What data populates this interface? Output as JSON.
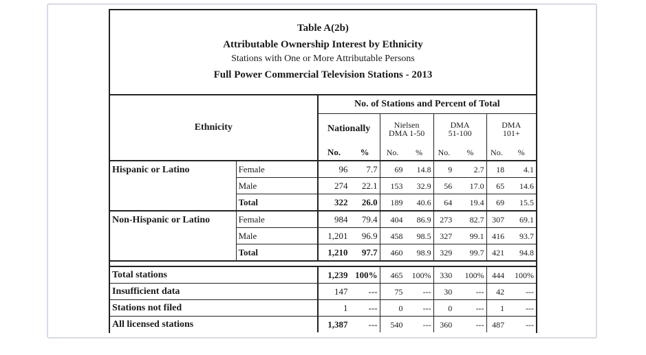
{
  "title": {
    "number": "Table A(2b)",
    "main": "Attributable Ownership Interest by Ethnicity",
    "subtitle": "Stations with One or More Attributable Persons",
    "scope": "Full Power Commercial Television Stations - 2013"
  },
  "header": {
    "ethnicity": "Ethnicity",
    "group_title": "No. of Stations and Percent of Total",
    "nationally": "Nationally",
    "nielsen_1": "Nielsen",
    "nielsen_2": "DMA 1-50",
    "dma51_1": "DMA",
    "dma51_2": "51-100",
    "dma101_1": "DMA",
    "dma101_2": "101+",
    "no": "No.",
    "pct": "%"
  },
  "hispanic": {
    "label": "Hispanic or Latino",
    "rows": [
      {
        "sub": "Female",
        "nat_no": "96",
        "nat_pct": "7.7",
        "a_no": "69",
        "a_pct": "14.8",
        "b_no": "9",
        "b_pct": "2.7",
        "c_no": "18",
        "c_pct": "4.1"
      },
      {
        "sub": "Male",
        "nat_no": "274",
        "nat_pct": "22.1",
        "a_no": "153",
        "a_pct": "32.9",
        "b_no": "56",
        "b_pct": "17.0",
        "c_no": "65",
        "c_pct": "14.6"
      },
      {
        "sub": "Total",
        "nat_no": "322",
        "nat_pct": "26.0",
        "a_no": "189",
        "a_pct": "40.6",
        "b_no": "64",
        "b_pct": "19.4",
        "c_no": "69",
        "c_pct": "15.5"
      }
    ]
  },
  "nonhispanic": {
    "label": "Non-Hispanic or Latino",
    "rows": [
      {
        "sub": "Female",
        "nat_no": "984",
        "nat_pct": "79.4",
        "a_no": "404",
        "a_pct": "86.9",
        "b_no": "273",
        "b_pct": "82.7",
        "c_no": "307",
        "c_pct": "69.1"
      },
      {
        "sub": "Male",
        "nat_no": "1,201",
        "nat_pct": "96.9",
        "a_no": "458",
        "a_pct": "98.5",
        "b_no": "327",
        "b_pct": "99.1",
        "c_no": "416",
        "c_pct": "93.7"
      },
      {
        "sub": "Total",
        "nat_no": "1,210",
        "nat_pct": "97.7",
        "a_no": "460",
        "a_pct": "98.9",
        "b_no": "329",
        "b_pct": "99.7",
        "c_no": "421",
        "c_pct": "94.8"
      }
    ]
  },
  "summary": [
    {
      "label": "Total stations",
      "nat_no": "1,239",
      "nat_pct": "100%",
      "a_no": "465",
      "a_pct": "100%",
      "b_no": "330",
      "b_pct": "100%",
      "c_no": "444",
      "c_pct": "100%"
    },
    {
      "label": "Insufficient data",
      "nat_no": "147",
      "nat_pct": "---",
      "a_no": "75",
      "a_pct": "---",
      "b_no": "30",
      "b_pct": "---",
      "c_no": "42",
      "c_pct": "---"
    },
    {
      "label": "Stations not filed",
      "nat_no": "1",
      "nat_pct": "---",
      "a_no": "0",
      "a_pct": "---",
      "b_no": "0",
      "b_pct": "---",
      "c_no": "1",
      "c_pct": "---"
    },
    {
      "label": "All licensed stations",
      "nat_no": "1,387",
      "nat_pct": "---",
      "a_no": "540",
      "a_pct": "---",
      "b_no": "360",
      "b_pct": "---",
      "c_no": "487",
      "c_pct": "---"
    }
  ]
}
